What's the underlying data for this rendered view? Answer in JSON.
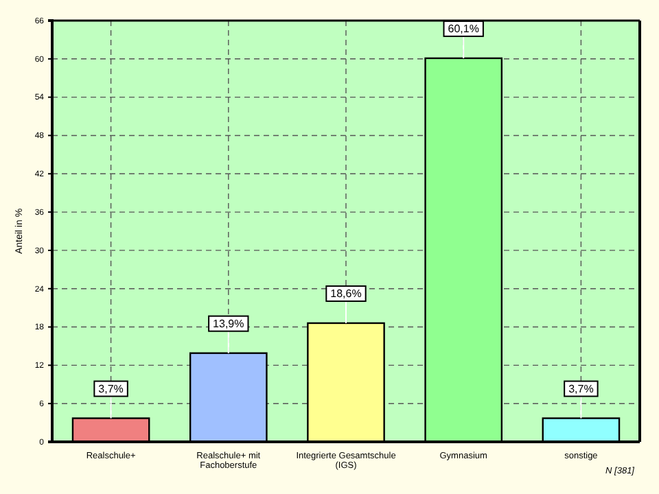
{
  "chart_data": {
    "type": "bar",
    "ylabel": "Anteil in %",
    "categories": [
      "Realschule+",
      "Realschule+ mit Fachoberstufe",
      "Integrierte Gesamtschule (IGS)",
      "Gymnasium",
      "sonstige"
    ],
    "values": [
      3.7,
      13.9,
      18.6,
      60.1,
      3.7
    ],
    "value_labels": [
      "3,7%",
      "13,9%",
      "18,6%",
      "60,1%",
      "3,7%"
    ],
    "colors": [
      "#f08080",
      "#a0c0ff",
      "#ffff90",
      "#90ff90",
      "#90ffff"
    ],
    "ylim": [
      0,
      66
    ],
    "yticks": [
      0,
      6,
      12,
      18,
      24,
      30,
      36,
      42,
      48,
      54,
      60,
      66
    ],
    "grid": true,
    "annotations": [
      "N [381]"
    ]
  }
}
